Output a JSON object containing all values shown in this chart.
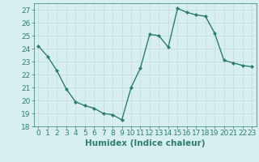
{
  "x": [
    0,
    1,
    2,
    3,
    4,
    5,
    6,
    7,
    8,
    9,
    10,
    11,
    12,
    13,
    14,
    15,
    16,
    17,
    18,
    19,
    20,
    21,
    22,
    23
  ],
  "y": [
    24.2,
    23.4,
    22.3,
    20.9,
    19.9,
    19.6,
    19.4,
    19.0,
    18.9,
    18.5,
    21.0,
    22.5,
    25.1,
    25.0,
    24.1,
    27.1,
    26.8,
    26.6,
    26.5,
    25.2,
    23.1,
    22.9,
    22.7,
    22.6
  ],
  "line_color": "#2e7d6e",
  "marker": "D",
  "marker_size": 2,
  "bg_color": "#d7efef",
  "grid_color": "#c8dede",
  "xlabel": "Humidex (Indice chaleur)",
  "ylim": [
    18,
    27.5
  ],
  "xlim": [
    -0.5,
    23.5
  ],
  "yticks": [
    18,
    19,
    20,
    21,
    22,
    23,
    24,
    25,
    26,
    27
  ],
  "xticks": [
    0,
    1,
    2,
    3,
    4,
    5,
    6,
    7,
    8,
    9,
    10,
    11,
    12,
    13,
    14,
    15,
    16,
    17,
    18,
    19,
    20,
    21,
    22,
    23
  ],
  "tick_label_size": 6.5,
  "xlabel_size": 7.5,
  "linewidth": 1.0
}
